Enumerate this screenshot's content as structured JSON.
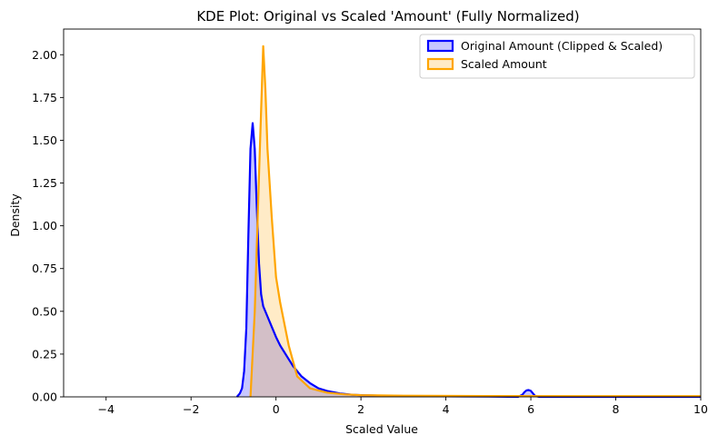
{
  "chart_data": {
    "type": "area",
    "title": "KDE Plot: Original vs Scaled 'Amount' (Fully Normalized)",
    "xlabel": "Scaled Value",
    "ylabel": "Density",
    "xlim": [
      -5,
      10
    ],
    "ylim": [
      0,
      2.15
    ],
    "x_ticks": [
      -4,
      -2,
      0,
      2,
      4,
      6,
      8,
      10
    ],
    "x_tick_labels": [
      "−4",
      "−2",
      "0",
      "2",
      "4",
      "6",
      "8",
      "10"
    ],
    "y_ticks": [
      0,
      0.25,
      0.5,
      0.75,
      1.0,
      1.25,
      1.5,
      1.75,
      2.0
    ],
    "y_tick_labels": [
      "0.00",
      "0.25",
      "0.50",
      "0.75",
      "1.00",
      "1.25",
      "1.50",
      "1.75",
      "2.00"
    ],
    "grid": false,
    "legend_position": "top-right",
    "series": [
      {
        "name": "Original Amount (Clipped & Scaled)",
        "color": "#0000ff",
        "x": [
          -0.92,
          -0.85,
          -0.8,
          -0.75,
          -0.7,
          -0.65,
          -0.6,
          -0.55,
          -0.5,
          -0.45,
          -0.4,
          -0.35,
          -0.3,
          -0.2,
          -0.1,
          0.0,
          0.1,
          0.2,
          0.3,
          0.4,
          0.5,
          0.6,
          0.8,
          1.0,
          1.2,
          1.5,
          1.8,
          2.0,
          2.5,
          3.0,
          4.0,
          5.0,
          5.7,
          5.8,
          5.85,
          5.9,
          5.95,
          6.0,
          6.05,
          6.1,
          6.2,
          7.0,
          8.0,
          10.0
        ],
        "y": [
          0.0,
          0.02,
          0.05,
          0.15,
          0.4,
          0.95,
          1.45,
          1.6,
          1.45,
          1.1,
          0.78,
          0.6,
          0.53,
          0.47,
          0.41,
          0.35,
          0.3,
          0.26,
          0.22,
          0.18,
          0.15,
          0.12,
          0.08,
          0.05,
          0.035,
          0.02,
          0.012,
          0.01,
          0.007,
          0.005,
          0.003,
          0.002,
          0.0,
          0.012,
          0.028,
          0.038,
          0.04,
          0.035,
          0.02,
          0.006,
          0.0,
          0.0,
          0.0,
          0.0
        ]
      },
      {
        "name": "Scaled Amount",
        "color": "#ffa500",
        "x": [
          -0.6,
          -0.5,
          -0.4,
          -0.3,
          -0.25,
          -0.2,
          -0.1,
          0.0,
          0.1,
          0.3,
          0.5,
          0.8,
          1.2,
          1.6,
          2.0,
          3.0,
          5.0,
          8.0,
          10.0
        ],
        "y": [
          0.0,
          0.5,
          1.3,
          2.05,
          1.8,
          1.45,
          1.05,
          0.7,
          0.55,
          0.3,
          0.12,
          0.05,
          0.025,
          0.015,
          0.01,
          0.007,
          0.005,
          0.004,
          0.004
        ]
      }
    ]
  }
}
